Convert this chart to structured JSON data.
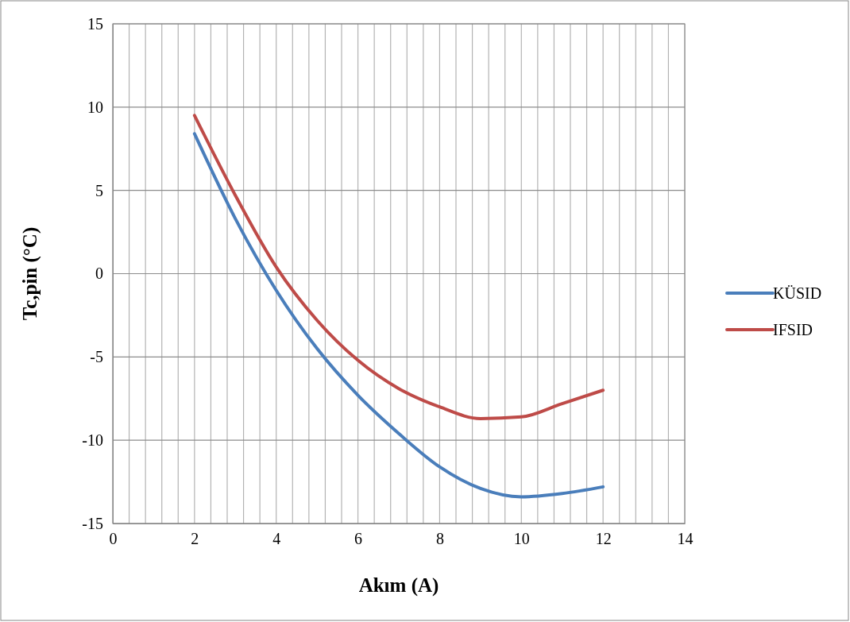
{
  "chart_data": {
    "type": "line",
    "xlabel": "Akım (A)",
    "ylabel": "Tc,pin (°C)",
    "x": [
      2,
      3,
      4,
      5,
      6,
      7,
      8,
      9,
      10,
      11,
      12
    ],
    "series": [
      {
        "name": "KÜSID",
        "color": "#4a7ebb",
        "values": [
          8.4,
          3.3,
          -1.0,
          -4.5,
          -7.3,
          -9.6,
          -11.6,
          -12.9,
          -13.4,
          -13.2,
          -12.8
        ]
      },
      {
        "name": "IFSID",
        "color": "#be4b48",
        "values": [
          9.5,
          4.7,
          0.4,
          -2.8,
          -5.2,
          -6.9,
          -8.0,
          -8.7,
          -8.6,
          -7.8,
          -7.0
        ]
      }
    ],
    "xlim": [
      0,
      14
    ],
    "ylim": [
      -15,
      15
    ],
    "xticks": [
      0,
      {
        "value": 0.4,
        "label": null
      },
      {
        "value": 0.8,
        "label": null
      },
      {
        "value": 1.2,
        "label": null
      },
      {
        "value": 1.6,
        "label": null
      },
      2,
      {
        "value": 2.4,
        "label": null
      },
      {
        "value": 2.8,
        "label": null
      },
      {
        "value": 3.2,
        "label": null
      },
      {
        "value": 3.6,
        "label": null
      },
      4,
      {
        "value": 4.4,
        "label": null
      },
      {
        "value": 4.8,
        "label": null
      },
      {
        "value": 5.2,
        "label": null
      },
      {
        "value": 5.6,
        "label": null
      },
      6,
      {
        "value": 6.4,
        "label": null
      },
      {
        "value": 6.8,
        "label": null
      },
      {
        "value": 7.2,
        "label": null
      },
      {
        "value": 7.6,
        "label": null
      },
      8,
      {
        "value": 8.4,
        "label": null
      },
      {
        "value": 8.8,
        "label": null
      },
      {
        "value": 9.2,
        "label": null
      },
      {
        "value": 9.6,
        "label": null
      },
      10,
      {
        "value": 10.4,
        "label": null
      },
      {
        "value": 10.8,
        "label": null
      },
      {
        "value": 11.2,
        "label": null
      },
      {
        "value": 11.6,
        "label": null
      },
      12,
      {
        "value": 12.4,
        "label": null
      },
      {
        "value": 12.8,
        "label": null
      },
      {
        "value": 13.2,
        "label": null
      },
      {
        "value": 13.6,
        "label": null
      },
      14
    ],
    "yticks": [
      -15,
      -10,
      -5,
      0,
      5,
      10,
      15
    ],
    "grid": true,
    "legend": "right",
    "marker": "none",
    "line_style": "solid"
  }
}
